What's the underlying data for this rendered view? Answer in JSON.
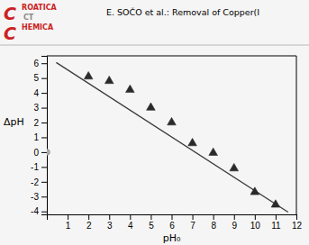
{
  "chart_data": {
    "type": "scatter",
    "title": "E. SOČO et al.: Removal of Copper(I",
    "annotations": [
      "C",
      "ROATICA",
      "CT",
      "C",
      "HEMICA"
    ],
    "xlabel": "pH₀",
    "ylabel": "ΔpH",
    "series": [
      {
        "type": "scatter",
        "marker": "triangle",
        "color": "#2a2a2a",
        "x": [
          2,
          3,
          4,
          5,
          6,
          7,
          8,
          9,
          10,
          11
        ],
        "values": [
          5.1,
          4.8,
          4.2,
          3.0,
          2.0,
          0.6,
          -0.05,
          -1.1,
          -2.7,
          -3.55
        ]
      },
      {
        "type": "line",
        "color": "#3a3a3a",
        "x": [
          0.45,
          11.6
        ],
        "values": [
          6.05,
          -4.05
        ]
      },
      {
        "type": "scatter",
        "marker": "circle",
        "color": "#aaaaaa",
        "x": [
          0
        ],
        "values": [
          0
        ]
      }
    ],
    "xlim": [
      0,
      12
    ],
    "ylim": [
      -4.2,
      6.5
    ],
    "xticks": [
      1,
      2,
      3,
      4,
      5,
      6,
      7,
      8,
      9,
      10,
      11,
      12
    ],
    "yticks": [
      -4,
      -3,
      -2,
      -1,
      0,
      1,
      2,
      3,
      4,
      5,
      6
    ]
  }
}
